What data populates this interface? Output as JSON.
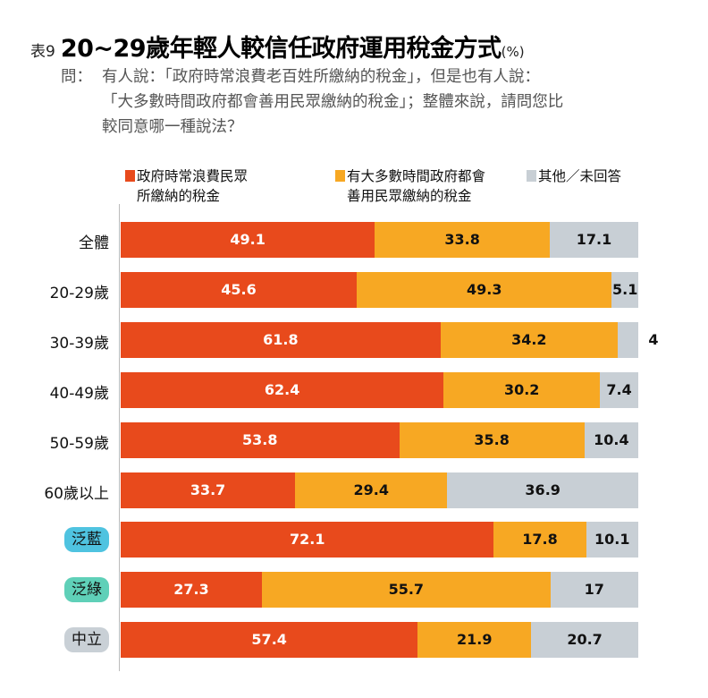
{
  "header": {
    "prefix": "表9",
    "title": "20~29歲年輕人較信任政府運用稅金方式",
    "unit": "(%)"
  },
  "question": {
    "label": "問：",
    "lines": [
      "有人說：「政府時常浪費老百姓所繳納的稅金」，但是也有人說：",
      "「大多數時間政府都會善用民眾繳納的稅金」；整體來說，請問您比",
      "較同意哪一種說法？"
    ]
  },
  "chart_data": {
    "type": "bar",
    "orientation": "horizontal",
    "stacked": true,
    "xlim": [
      0,
      100
    ],
    "legend": "top",
    "categories": [
      "全體",
      "20-29歲",
      "30-39歲",
      "40-49歲",
      "50-59歲",
      "60歲以上",
      "泛藍",
      "泛綠",
      "中立"
    ],
    "category_pill_colors": {
      "泛藍": "#4fc3e0",
      "泛綠": "#5fd0b8",
      "中立": "#c9d0d6"
    },
    "series": [
      {
        "name": "政府時常浪費民眾所繳納的稅金",
        "legend_lines": [
          "政府時常浪費民眾",
          "所繳納的稅金"
        ],
        "color": "#e84a1c",
        "values": [
          49.1,
          45.6,
          61.8,
          62.4,
          53.8,
          33.7,
          72.1,
          27.3,
          57.4
        ]
      },
      {
        "name": "有大多數時間政府都會善用民眾繳納的稅金",
        "legend_lines": [
          "有大多數時間政府都會",
          "善用民眾繳納的稅金"
        ],
        "color": "#f7a823",
        "values": [
          33.8,
          49.3,
          34.2,
          30.2,
          35.8,
          29.4,
          17.8,
          55.7,
          21.9
        ]
      },
      {
        "name": "其他／未回答",
        "legend_lines": [
          "其他／未回答"
        ],
        "color": "#c8cfd5",
        "values": [
          17.1,
          5.1,
          4,
          7.4,
          10.4,
          36.9,
          10.1,
          17,
          20.7
        ]
      }
    ]
  }
}
